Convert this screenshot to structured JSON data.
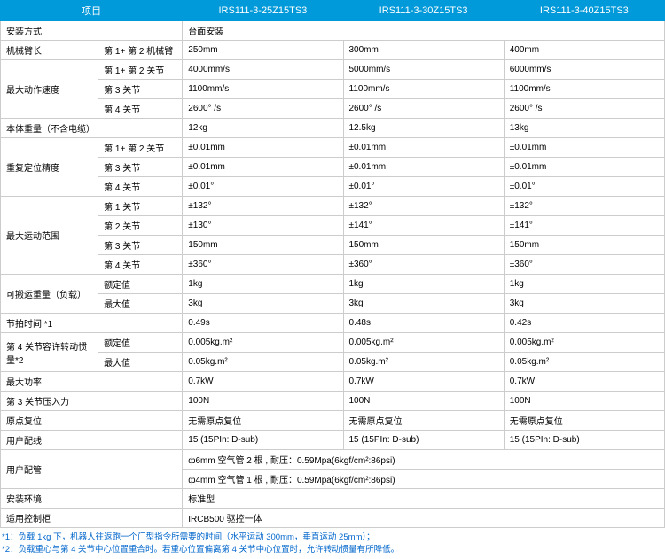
{
  "header": [
    "项目",
    "IRS111-3-25Z15TS3",
    "IRS111-3-30Z15TS3",
    "IRS111-3-40Z15TS3"
  ],
  "rows": [
    {
      "label": "安装方式",
      "sub": "",
      "v": [
        "台面安装"
      ],
      "span": 3
    },
    {
      "label": "机械臂长",
      "sub": "第 1+ 第 2 机械臂",
      "v": [
        "250mm",
        "300mm",
        "400mm"
      ]
    },
    {
      "label": "最大动作速度",
      "sub": "第 1+ 第 2 关节",
      "v": [
        "4000mm/s",
        "5000mm/s",
        "6000mm/s"
      ],
      "rowspan": 3
    },
    {
      "sub": "第 3 关节",
      "v": [
        "1100mm/s",
        "1100mm/s",
        "1100mm/s"
      ]
    },
    {
      "sub": "第 4 关节",
      "v": [
        "2600° /s",
        "2600° /s",
        "2600° /s"
      ]
    },
    {
      "label": "本体重量（不含电缆）",
      "sub": "",
      "v": [
        "12kg",
        "12.5kg",
        "13kg"
      ],
      "wide": true
    },
    {
      "label": "重复定位精度",
      "sub": "第 1+ 第 2 关节",
      "v": [
        "±0.01mm",
        "±0.01mm",
        "±0.01mm"
      ],
      "rowspan": 3
    },
    {
      "sub": "第 3 关节",
      "v": [
        "±0.01mm",
        "±0.01mm",
        "±0.01mm"
      ]
    },
    {
      "sub": "第 4 关节",
      "v": [
        "±0.01°",
        "±0.01°",
        "±0.01°"
      ]
    },
    {
      "label": "最大运动范围",
      "sub": "第 1 关节",
      "v": [
        "±132°",
        "±132°",
        "±132°"
      ],
      "rowspan": 4
    },
    {
      "sub": "第 2 关节",
      "v": [
        "±130°",
        "±141°",
        "±141°"
      ]
    },
    {
      "sub": "第 3 关节",
      "v": [
        "150mm",
        "150mm",
        "150mm"
      ]
    },
    {
      "sub": "第 4 关节",
      "v": [
        "±360°",
        "±360°",
        "±360°"
      ]
    },
    {
      "label": "可搬运重量（负载）",
      "sub": "额定值",
      "v": [
        "1kg",
        "1kg",
        "1kg"
      ],
      "rowspan": 2
    },
    {
      "sub": "最大值",
      "v": [
        "3kg",
        "3kg",
        "3kg"
      ]
    },
    {
      "label": "节拍时间 *1",
      "sub": "",
      "v": [
        "0.49s",
        "0.48s",
        "0.42s"
      ],
      "wide": true
    },
    {
      "label": "第 4 关节容许转动惯量*2",
      "sub": "额定值",
      "v": [
        "0.005kg.m²",
        "0.005kg.m²",
        "0.005kg.m²"
      ],
      "rowspan": 2
    },
    {
      "sub": "最大值",
      "v": [
        "0.05kg.m²",
        "0.05kg.m²",
        "0.05kg.m²"
      ]
    },
    {
      "label": "最大功率",
      "sub": "",
      "v": [
        "0.7kW",
        "0.7kW",
        "0.7kW"
      ],
      "wide": true
    },
    {
      "label": "第 3 关节压入力",
      "sub": "",
      "v": [
        "100N",
        "100N",
        "100N"
      ],
      "wide": true
    },
    {
      "label": "原点复位",
      "sub": "",
      "v": [
        "无需原点复位",
        "无需原点复位",
        "无需原点复位"
      ],
      "wide": true
    },
    {
      "label": "用户配线",
      "sub": "",
      "v": [
        "15 (15PIn: D-sub)",
        "15 (15PIn: D-sub)",
        "15 (15PIn: D-sub)"
      ],
      "wide": true
    },
    {
      "label": "用户配管",
      "sub": "",
      "v": [
        "ф6mm 空气管 2 根 , 耐压：0.59Mpa(6kgf/cm²:86psi)"
      ],
      "wide": true,
      "span": 3,
      "rowspan": 2
    },
    {
      "v": [
        "ф4mm 空气管 1 根 , 耐压：0.59Mpa(6kgf/cm²:86psi)"
      ],
      "span": 3,
      "subonly": true
    },
    {
      "label": "安装环境",
      "sub": "",
      "v": [
        "标准型"
      ],
      "wide": true,
      "span": 3
    },
    {
      "label": "适用控制柜",
      "sub": "",
      "v": [
        "IRCB500 驱控一体"
      ],
      "wide": true,
      "span": 3
    }
  ],
  "footnotes": [
    "*1：负载 1kg 下，机器人往返跑一个门型指令所需要的时间（水平运动 300mm，垂直运动 25mm）；",
    "*2：负载重心与第 4 关节中心位置重合时。若重心位置偏离第 4 关节中心位置时，允许转动惯量有所降低。"
  ]
}
